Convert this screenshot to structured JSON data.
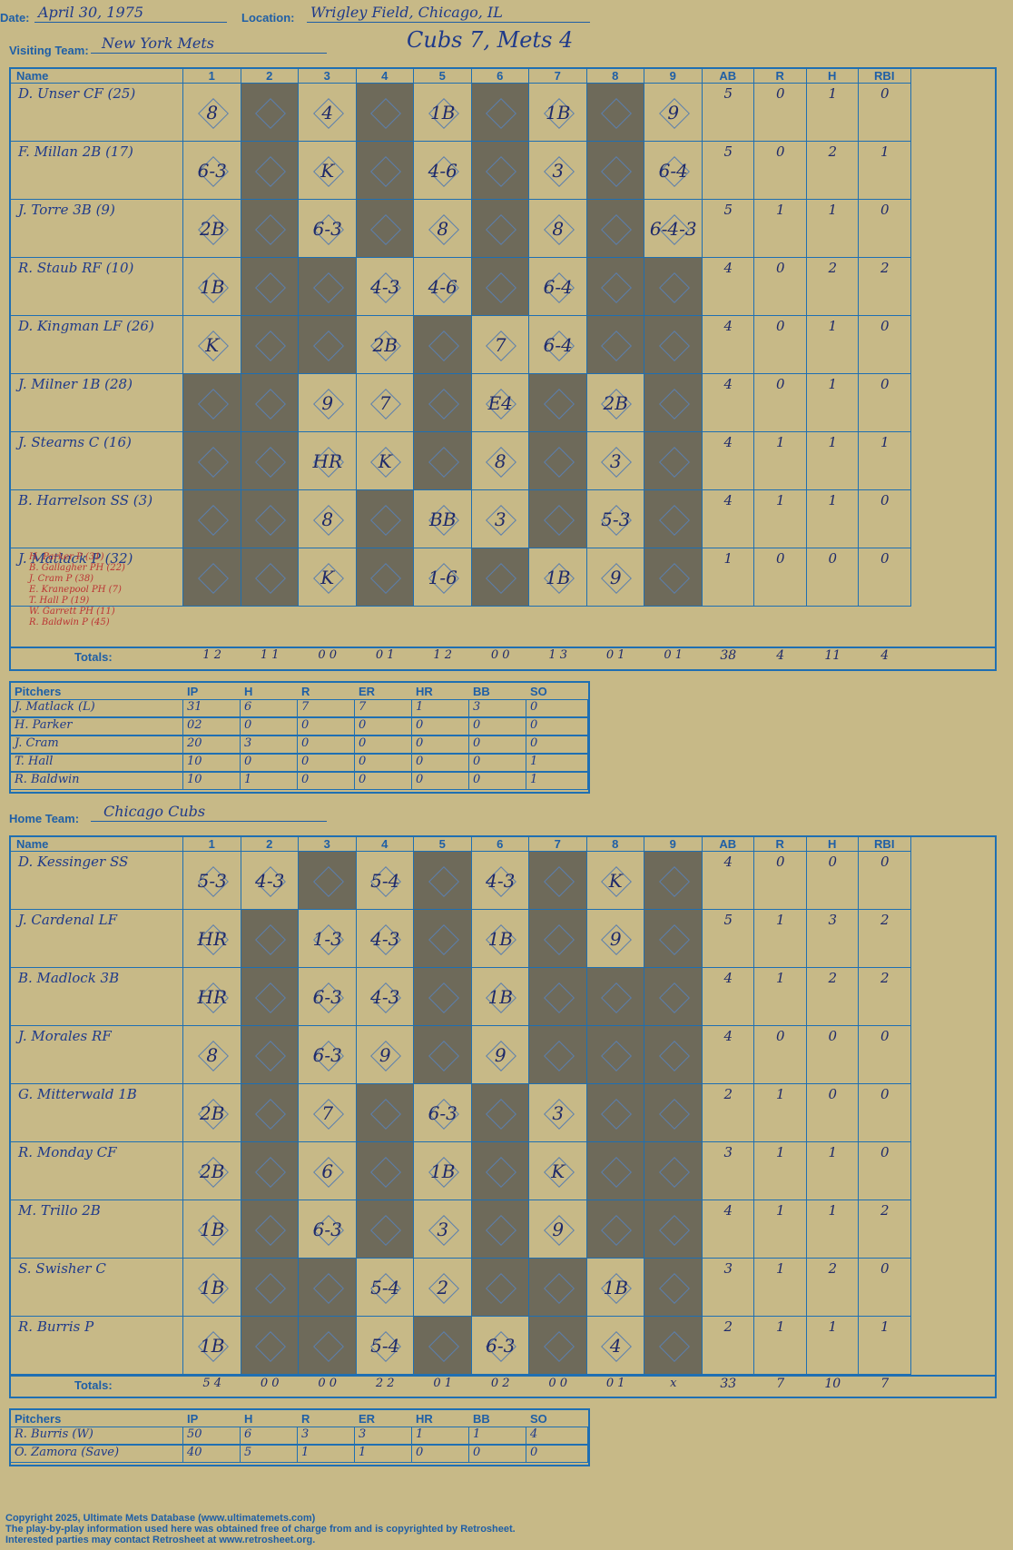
{
  "header": {
    "date_label": "Date:",
    "date": "April 30, 1975",
    "location_label": "Location:",
    "location": "Wrigley Field, Chicago, IL",
    "result": "Cubs 7, Mets 4"
  },
  "visitor": {
    "team_label": "Visiting Team:",
    "team": "New York Mets",
    "cols": [
      "Name",
      "1",
      "2",
      "3",
      "4",
      "5",
      "6",
      "7",
      "8",
      "9",
      "AB",
      "R",
      "H",
      "RBI"
    ],
    "players": [
      {
        "name": "D. Unser CF (25)",
        "ab": "5",
        "r": "0",
        "h": "1",
        "rbi": "0",
        "marks": [
          {
            "i": 0,
            "t": "8"
          },
          {
            "i": 2,
            "t": "4"
          },
          {
            "i": 4,
            "t": "1B"
          },
          {
            "i": 6,
            "t": "1B"
          },
          {
            "i": 8,
            "t": "9"
          }
        ]
      },
      {
        "name": "F. Millan 2B (17)",
        "ab": "5",
        "r": "0",
        "h": "2",
        "rbi": "1",
        "marks": [
          {
            "i": 0,
            "t": "6-3"
          },
          {
            "i": 2,
            "t": "K"
          },
          {
            "i": 4,
            "t": "4-6"
          },
          {
            "i": 6,
            "t": "3"
          },
          {
            "i": 8,
            "t": "6-4"
          }
        ]
      },
      {
        "name": "J. Torre 3B (9)",
        "ab": "5",
        "r": "1",
        "h": "1",
        "rbi": "0",
        "marks": [
          {
            "i": 0,
            "t": "2B"
          },
          {
            "i": 2,
            "t": "6-3"
          },
          {
            "i": 4,
            "t": "8"
          },
          {
            "i": 6,
            "t": "8"
          },
          {
            "i": 8,
            "t": "6-4-3"
          }
        ]
      },
      {
        "name": "R. Staub RF (10)",
        "ab": "4",
        "r": "0",
        "h": "2",
        "rbi": "2",
        "marks": [
          {
            "i": 0,
            "t": "1B"
          },
          {
            "i": 3,
            "t": "4-3"
          },
          {
            "i": 4,
            "t": "4-6"
          },
          {
            "i": 6,
            "t": "6-4"
          }
        ]
      },
      {
        "name": "D. Kingman LF (26)",
        "ab": "4",
        "r": "0",
        "h": "1",
        "rbi": "0",
        "marks": [
          {
            "i": 0,
            "t": "K"
          },
          {
            "i": 3,
            "t": "2B"
          },
          {
            "i": 5,
            "t": "7"
          },
          {
            "i": 6,
            "t": "6-4"
          }
        ]
      },
      {
        "name": "J. Milner 1B (28)",
        "ab": "4",
        "r": "0",
        "h": "1",
        "rbi": "0",
        "marks": [
          {
            "i": 2,
            "t": "9"
          },
          {
            "i": 3,
            "t": "7"
          },
          {
            "i": 5,
            "t": "E4"
          },
          {
            "i": 7,
            "t": "2B"
          }
        ]
      },
      {
        "name": "J. Stearns C (16)",
        "ab": "4",
        "r": "1",
        "h": "1",
        "rbi": "1",
        "marks": [
          {
            "i": 2,
            "t": "HR"
          },
          {
            "i": 3,
            "t": "K"
          },
          {
            "i": 5,
            "t": "8"
          },
          {
            "i": 7,
            "t": "3"
          }
        ]
      },
      {
        "name": "B. Harrelson SS (3)",
        "ab": "4",
        "r": "1",
        "h": "1",
        "rbi": "0",
        "marks": [
          {
            "i": 2,
            "t": "8"
          },
          {
            "i": 4,
            "t": "BB"
          },
          {
            "i": 5,
            "t": "3"
          },
          {
            "i": 7,
            "t": "5-3"
          }
        ]
      },
      {
        "name": "J. Matlack P (32)",
        "ab": "1",
        "r": "0",
        "h": "0",
        "rbi": "0",
        "marks": [
          {
            "i": 2,
            "t": "K"
          },
          {
            "i": 4,
            "t": "1-6"
          },
          {
            "i": 6,
            "t": "1B"
          },
          {
            "i": 7,
            "t": "9"
          }
        ]
      }
    ],
    "subs": [
      "H. Parker P (31)",
      "B. Gallagher PH (22)",
      "J. Cram P (38)",
      "E. Kranepool PH (7)",
      "T. Hall P (19)",
      "W. Garrett PH (11)",
      "R. Baldwin P (45)"
    ],
    "totals_label": "Totals:",
    "totals": [
      "1 2",
      "1 1",
      "0 0",
      "0 1",
      "1 2",
      "0 0",
      "1 3",
      "0 1",
      "0 1"
    ],
    "tot": [
      "38",
      "4",
      "11",
      "4"
    ],
    "pitch_cols": [
      "Pitchers",
      "IP",
      "H",
      "R",
      "ER",
      "HR",
      "BB",
      "SO"
    ],
    "pitchers": [
      [
        "J. Matlack (L)",
        "31",
        "6",
        "7",
        "7",
        "1",
        "3",
        "0"
      ],
      [
        "H. Parker",
        "02",
        "0",
        "0",
        "0",
        "0",
        "0",
        "0"
      ],
      [
        "J. Cram",
        "20",
        "3",
        "0",
        "0",
        "0",
        "0",
        "0"
      ],
      [
        "T. Hall",
        "10",
        "0",
        "0",
        "0",
        "0",
        "0",
        "1"
      ],
      [
        "R. Baldwin",
        "10",
        "1",
        "0",
        "0",
        "0",
        "0",
        "1"
      ]
    ]
  },
  "home": {
    "team_label": "Home Team:",
    "team": "Chicago Cubs",
    "cols": [
      "Name",
      "1",
      "2",
      "3",
      "4",
      "5",
      "6",
      "7",
      "8",
      "9",
      "AB",
      "R",
      "H",
      "RBI"
    ],
    "players": [
      {
        "name": "D. Kessinger SS",
        "ab": "4",
        "r": "0",
        "h": "0",
        "rbi": "0",
        "marks": [
          {
            "i": 0,
            "t": "5-3"
          },
          {
            "i": 1,
            "t": "4-3"
          },
          {
            "i": 3,
            "t": "5-4"
          },
          {
            "i": 5,
            "t": "4-3"
          },
          {
            "i": 7,
            "t": "K"
          }
        ]
      },
      {
        "name": "J. Cardenal LF",
        "ab": "5",
        "r": "1",
        "h": "3",
        "rbi": "2",
        "marks": [
          {
            "i": 0,
            "t": "HR"
          },
          {
            "i": 2,
            "t": "1-3"
          },
          {
            "i": 3,
            "t": "4-3"
          },
          {
            "i": 5,
            "t": "1B"
          },
          {
            "i": 7,
            "t": "9"
          }
        ]
      },
      {
        "name": "B. Madlock 3B",
        "ab": "4",
        "r": "1",
        "h": "2",
        "rbi": "2",
        "marks": [
          {
            "i": 0,
            "t": "HR"
          },
          {
            "i": 2,
            "t": "6-3"
          },
          {
            "i": 3,
            "t": "4-3"
          },
          {
            "i": 5,
            "t": "1B"
          }
        ]
      },
      {
        "name": "J. Morales RF",
        "ab": "4",
        "r": "0",
        "h": "0",
        "rbi": "0",
        "marks": [
          {
            "i": 0,
            "t": "8"
          },
          {
            "i": 2,
            "t": "6-3"
          },
          {
            "i": 3,
            "t": "9"
          },
          {
            "i": 5,
            "t": "9"
          }
        ]
      },
      {
        "name": "G. Mitterwald 1B",
        "ab": "2",
        "r": "1",
        "h": "0",
        "rbi": "0",
        "marks": [
          {
            "i": 0,
            "t": "2B"
          },
          {
            "i": 2,
            "t": "7"
          },
          {
            "i": 4,
            "t": "6-3"
          },
          {
            "i": 6,
            "t": "3"
          }
        ]
      },
      {
        "name": "R. Monday CF",
        "ab": "3",
        "r": "1",
        "h": "1",
        "rbi": "0",
        "marks": [
          {
            "i": 0,
            "t": "2B"
          },
          {
            "i": 2,
            "t": "6"
          },
          {
            "i": 4,
            "t": "1B"
          },
          {
            "i": 6,
            "t": "K"
          }
        ]
      },
      {
        "name": "M. Trillo 2B",
        "ab": "4",
        "r": "1",
        "h": "1",
        "rbi": "2",
        "marks": [
          {
            "i": 0,
            "t": "1B"
          },
          {
            "i": 2,
            "t": "6-3"
          },
          {
            "i": 4,
            "t": "3"
          },
          {
            "i": 6,
            "t": "9"
          }
        ]
      },
      {
        "name": "S. Swisher C",
        "ab": "3",
        "r": "1",
        "h": "2",
        "rbi": "0",
        "marks": [
          {
            "i": 0,
            "t": "1B"
          },
          {
            "i": 3,
            "t": "5-4"
          },
          {
            "i": 4,
            "t": "2"
          },
          {
            "i": 7,
            "t": "1B"
          }
        ]
      },
      {
        "name": "R. Burris P",
        "ab": "2",
        "r": "1",
        "h": "1",
        "rbi": "1",
        "marks": [
          {
            "i": 0,
            "t": "1B"
          },
          {
            "i": 3,
            "t": "5-4"
          },
          {
            "i": 5,
            "t": "6-3"
          },
          {
            "i": 7,
            "t": "4"
          }
        ]
      }
    ],
    "totals_label": "Totals:",
    "totals": [
      "5 4",
      "0 0",
      "0 0",
      "2 2",
      "0 1",
      "0 2",
      "0 0",
      "0 1",
      "x"
    ],
    "tot": [
      "33",
      "7",
      "10",
      "7"
    ],
    "pitch_cols": [
      "Pitchers",
      "IP",
      "H",
      "R",
      "ER",
      "HR",
      "BB",
      "SO"
    ],
    "pitchers": [
      [
        "R. Burris (W)",
        "50",
        "6",
        "3",
        "3",
        "1",
        "1",
        "4"
      ],
      [
        "O. Zamora (Save)",
        "40",
        "5",
        "1",
        "1",
        "0",
        "0",
        "0"
      ]
    ]
  },
  "footer": [
    "Copyright 2025, Ultimate Mets Database (www.ultimatemets.com)",
    "The play-by-play information used here was obtained free of charge from and is copyrighted by Retrosheet.",
    "Interested parties may contact Retrosheet at www.retrosheet.org."
  ]
}
